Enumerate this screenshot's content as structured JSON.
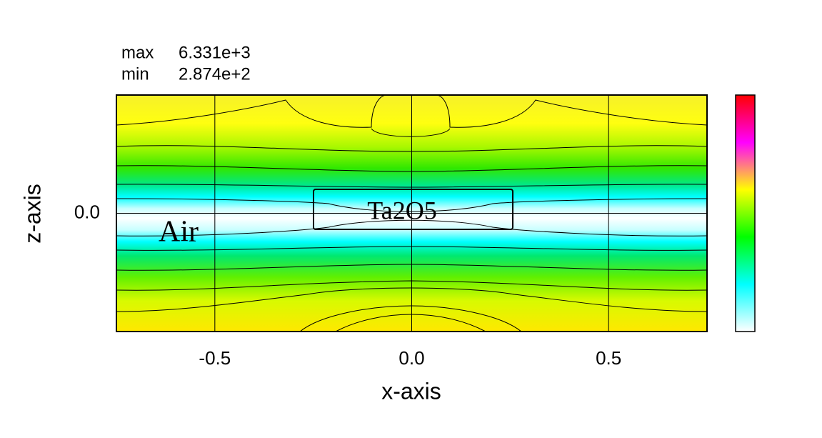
{
  "chart_data": {
    "type": "heatmap",
    "xlabel": "x-axis",
    "ylabel": "z-axis",
    "xlim": [
      -0.75,
      0.75
    ],
    "ylim": [
      -0.3,
      0.3
    ],
    "xticks": [
      -0.5,
      {
        "value": 0,
        "label": "0.0"
      },
      0.5
    ],
    "yticks": [
      {
        "value": 0,
        "label": "0.0"
      }
    ],
    "grid": true,
    "max": {
      "label": "max",
      "value": 6331,
      "value_label": "6.331e+3"
    },
    "min": {
      "label": "min",
      "value": 287.4,
      "value_label": "2.874e+2"
    },
    "annotations": [
      "Air",
      "Ta2O5"
    ]
  }
}
